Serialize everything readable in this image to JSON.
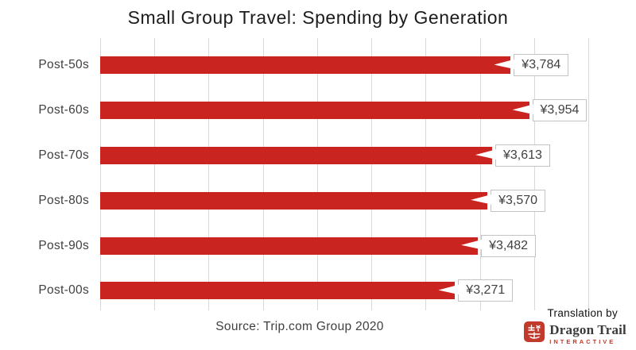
{
  "title": "Small Group Travel: Spending by Generation",
  "chart_data": {
    "type": "bar",
    "orientation": "horizontal",
    "title": "Small Group Travel: Spending by Generation",
    "categories": [
      "Post-50s",
      "Post-60s",
      "Post-70s",
      "Post-80s",
      "Post-90s",
      "Post-00s"
    ],
    "values": [
      3784,
      3954,
      3613,
      3570,
      3482,
      3271
    ],
    "value_labels": [
      "¥3,784",
      "¥3,954",
      "¥3,613",
      "¥3,570",
      "¥3,482",
      "¥3,271"
    ],
    "xlabel": "",
    "ylabel": "",
    "xlim": [
      0,
      4500
    ],
    "gridline_step": 500,
    "grid": "vertical-only",
    "legend": "none",
    "bar_color": "#c9241f",
    "gridline_color": "#d9d9d9"
  },
  "footer": {
    "source": "Source: Trip.com Group 2020",
    "translation_by": "Translation by"
  },
  "logo": {
    "name": "Dragon Trail",
    "subtitle": "INTERACTIVE",
    "seal_color": "#c13a2b"
  }
}
